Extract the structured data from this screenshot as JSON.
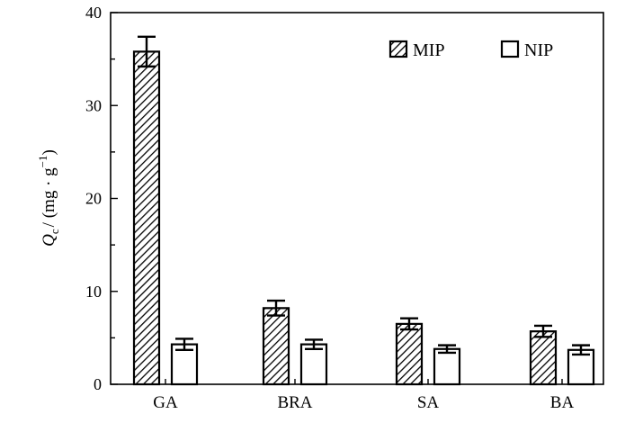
{
  "chart_data": {
    "type": "bar",
    "categories": [
      "GA",
      "BRA",
      "SA",
      "BA"
    ],
    "series": [
      {
        "name": "MIP",
        "values": [
          35.8,
          8.2,
          6.5,
          5.7
        ],
        "errors": [
          1.6,
          0.8,
          0.6,
          0.6
        ],
        "pattern": "hatched"
      },
      {
        "name": "NIP",
        "values": [
          4.3,
          4.3,
          3.8,
          3.7
        ],
        "errors": [
          0.6,
          0.5,
          0.4,
          0.5
        ],
        "pattern": "open"
      }
    ],
    "ylim": [
      0,
      40
    ],
    "yticks": [
      0,
      10,
      20,
      30,
      40
    ],
    "ylabel": {
      "symbol": "Q",
      "subscript": "c",
      "units_prefix": "/ (mg · g",
      "exponent": "−1",
      "units_suffix": ")"
    },
    "title": "",
    "xlabel": "",
    "legend": "top-right",
    "grid": false
  }
}
